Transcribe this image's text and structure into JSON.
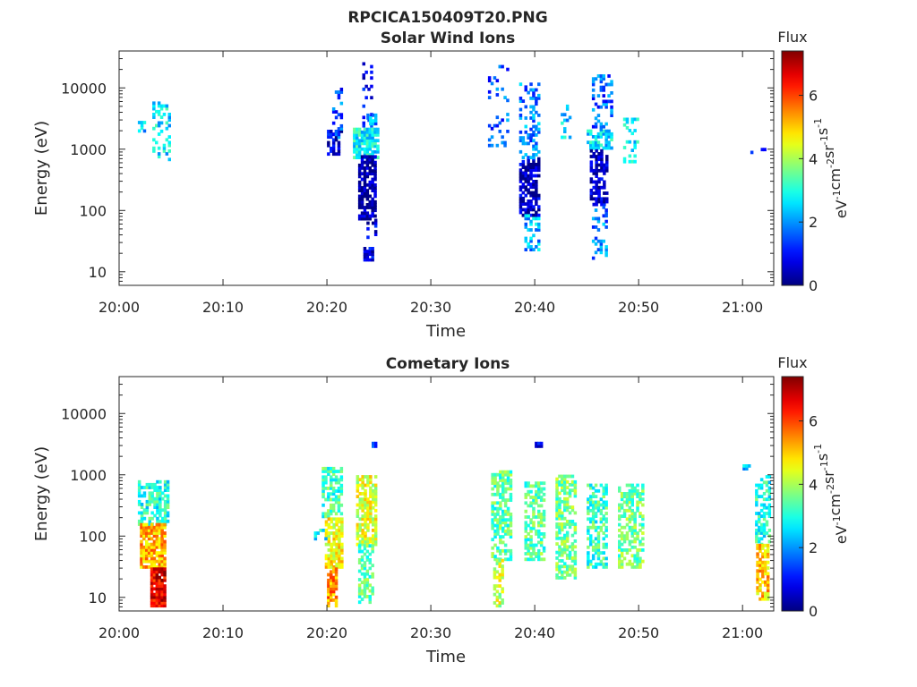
{
  "figure": {
    "title": "RPCICA150409T20.PNG"
  },
  "chart_data": [
    {
      "type": "heatmap",
      "title": "Solar Wind Ions",
      "xlabel": "Time",
      "ylabel": "Energy (eV)",
      "x_ticks": [
        "20:00",
        "20:10",
        "20:20",
        "20:30",
        "20:40",
        "20:50",
        "21:00"
      ],
      "xlim_minutes": [
        0,
        63
      ],
      "y_scale": "log",
      "y_ticks": [
        10,
        100,
        1000,
        10000
      ],
      "y_tick_labels": [
        "10",
        "100",
        "1000",
        "10000"
      ],
      "ylim": [
        6,
        40000
      ],
      "colorbar": {
        "title": "Flux",
        "label": "eV-1cm-2sr-1s-1",
        "label_base": "eV",
        "label_terms": [
          [
            "",
            "-1"
          ],
          [
            "cm",
            "-2"
          ],
          [
            "sr",
            "-1"
          ],
          [
            "s",
            "-1"
          ]
        ],
        "range": [
          0,
          7.4
        ],
        "ticks": [
          0,
          2,
          4,
          6
        ],
        "tick_labels": [
          "0",
          "2",
          "4",
          "6"
        ],
        "colormap": "jet"
      },
      "blobs": [
        {
          "t0": 1.8,
          "t1": 2.4,
          "e0": 1900,
          "e1": 3200,
          "v": 2.4,
          "d": 0.5
        },
        {
          "t0": 3.2,
          "t1": 4.8,
          "e0": 650,
          "e1": 5500,
          "v": 2.6,
          "d": 0.3
        },
        {
          "t0": 20.0,
          "t1": 21.5,
          "e0": 800,
          "e1": 2000,
          "v": 0.6,
          "d": 0.5
        },
        {
          "t0": 20.5,
          "t1": 21.5,
          "e0": 1500,
          "e1": 10000,
          "v": 1.5,
          "d": 0.3
        },
        {
          "t0": 22.5,
          "t1": 24.8,
          "e0": 700,
          "e1": 2200,
          "v": 2.8,
          "d": 0.8
        },
        {
          "t0": 23.0,
          "t1": 24.6,
          "e0": 70,
          "e1": 800,
          "v": 0.2,
          "d": 0.75
        },
        {
          "t0": 23.4,
          "t1": 24.2,
          "e0": 2300,
          "e1": 24000,
          "v": 0.8,
          "d": 0.25
        },
        {
          "t0": 23.8,
          "t1": 24.8,
          "e0": 2500,
          "e1": 3500,
          "v": 2.0,
          "d": 0.6
        },
        {
          "t0": 23.8,
          "t1": 24.8,
          "e0": 35,
          "e1": 70,
          "v": 0.8,
          "d": 0.4
        },
        {
          "t0": 23.5,
          "t1": 24.3,
          "e0": 15,
          "e1": 25,
          "v": 0.7,
          "d": 0.8
        },
        {
          "t0": 35.5,
          "t1": 37.5,
          "e0": 800,
          "e1": 22000,
          "v": 1.6,
          "d": 0.12
        },
        {
          "t0": 38.5,
          "t1": 40.5,
          "e0": 80,
          "e1": 700,
          "v": 0.4,
          "d": 0.7
        },
        {
          "t0": 38.5,
          "t1": 40.5,
          "e0": 700,
          "e1": 12000,
          "v": 1.8,
          "d": 0.35
        },
        {
          "t0": 39.0,
          "t1": 40.5,
          "e0": 22,
          "e1": 80,
          "v": 2.2,
          "d": 0.35
        },
        {
          "t0": 42.5,
          "t1": 43.5,
          "e0": 1500,
          "e1": 6000,
          "v": 2.4,
          "d": 0.2
        },
        {
          "t0": 45.0,
          "t1": 47.3,
          "e0": 1000,
          "e1": 2000,
          "v": 2.6,
          "d": 0.75
        },
        {
          "t0": 45.3,
          "t1": 47.0,
          "e0": 120,
          "e1": 900,
          "v": 0.4,
          "d": 0.6
        },
        {
          "t0": 45.5,
          "t1": 47.5,
          "e0": 2000,
          "e1": 15000,
          "v": 1.6,
          "d": 0.3
        },
        {
          "t0": 45.5,
          "t1": 47.0,
          "e0": 16,
          "e1": 120,
          "v": 1.8,
          "d": 0.3
        },
        {
          "t0": 48.5,
          "t1": 50.0,
          "e0": 600,
          "e1": 3000,
          "v": 2.6,
          "d": 0.35
        },
        {
          "t0": 60.5,
          "t1": 62.8,
          "e0": 850,
          "e1": 1050,
          "v": 1.0,
          "d": 0.15
        }
      ]
    },
    {
      "type": "heatmap",
      "title": "Cometary Ions",
      "xlabel": "Time",
      "ylabel": "Energy (eV)",
      "x_ticks": [
        "20:00",
        "20:10",
        "20:20",
        "20:30",
        "20:40",
        "20:50",
        "21:00"
      ],
      "xlim_minutes": [
        0,
        63
      ],
      "y_scale": "log",
      "y_ticks": [
        10,
        100,
        1000,
        10000
      ],
      "y_tick_labels": [
        "10",
        "100",
        "1000",
        "10000"
      ],
      "ylim": [
        6,
        40000
      ],
      "colorbar": {
        "title": "Flux",
        "label": "eV-1cm-2sr-1s-1",
        "label_base": "eV",
        "label_terms": [
          [
            "",
            "-1"
          ],
          [
            "cm",
            "-2"
          ],
          [
            "sr",
            "-1"
          ],
          [
            "s",
            "-1"
          ]
        ],
        "range": [
          0,
          7.4
        ],
        "ticks": [
          0,
          2,
          4,
          6
        ],
        "tick_labels": [
          "0",
          "2",
          "4",
          "6"
        ],
        "colormap": "jet"
      },
      "blobs": [
        {
          "t0": 1.8,
          "t1": 4.8,
          "e0": 150,
          "e1": 800,
          "v": 3.0,
          "d": 0.6
        },
        {
          "t0": 2.0,
          "t1": 4.5,
          "e0": 30,
          "e1": 150,
          "v": 5.2,
          "d": 0.85
        },
        {
          "t0": 3.0,
          "t1": 4.3,
          "e0": 7,
          "e1": 30,
          "v": 6.6,
          "d": 0.95
        },
        {
          "t0": 19.5,
          "t1": 21.5,
          "e0": 200,
          "e1": 1300,
          "v": 3.2,
          "d": 0.6
        },
        {
          "t0": 19.8,
          "t1": 21.5,
          "e0": 30,
          "e1": 200,
          "v": 4.6,
          "d": 0.8
        },
        {
          "t0": 20.0,
          "t1": 21.0,
          "e0": 7,
          "e1": 30,
          "v": 5.4,
          "d": 0.8
        },
        {
          "t0": 22.8,
          "t1": 24.8,
          "e0": 70,
          "e1": 900,
          "v": 4.4,
          "d": 0.7
        },
        {
          "t0": 23.0,
          "t1": 24.5,
          "e0": 8,
          "e1": 70,
          "v": 3.4,
          "d": 0.5
        },
        {
          "t0": 18.5,
          "t1": 20.0,
          "e0": 70,
          "e1": 120,
          "v": 2.8,
          "d": 0.3
        },
        {
          "t0": 24.3,
          "t1": 24.8,
          "e0": 2800,
          "e1": 3300,
          "v": 1.0,
          "d": 0.9
        },
        {
          "t0": 35.8,
          "t1": 37.8,
          "e0": 40,
          "e1": 1100,
          "v": 3.4,
          "d": 0.6
        },
        {
          "t0": 36.0,
          "t1": 37.0,
          "e0": 7,
          "e1": 40,
          "v": 4.2,
          "d": 0.55
        },
        {
          "t0": 39.0,
          "t1": 40.8,
          "e0": 40,
          "e1": 700,
          "v": 3.4,
          "d": 0.6
        },
        {
          "t0": 42.0,
          "t1": 44.0,
          "e0": 20,
          "e1": 950,
          "v": 3.6,
          "d": 0.6
        },
        {
          "t0": 45.0,
          "t1": 47.0,
          "e0": 30,
          "e1": 650,
          "v": 3.2,
          "d": 0.55
        },
        {
          "t0": 48.0,
          "t1": 50.3,
          "e0": 30,
          "e1": 650,
          "v": 3.6,
          "d": 0.55
        },
        {
          "t0": 40.0,
          "t1": 40.6,
          "e0": 2800,
          "e1": 3300,
          "v": 1.0,
          "d": 0.9
        },
        {
          "t0": 60.0,
          "t1": 60.6,
          "e0": 1200,
          "e1": 1400,
          "v": 2.2,
          "d": 0.8
        },
        {
          "t0": 61.2,
          "t1": 62.7,
          "e0": 70,
          "e1": 900,
          "v": 3.0,
          "d": 0.45
        },
        {
          "t0": 61.3,
          "t1": 62.5,
          "e0": 9,
          "e1": 70,
          "v": 5.0,
          "d": 0.7
        }
      ]
    }
  ]
}
